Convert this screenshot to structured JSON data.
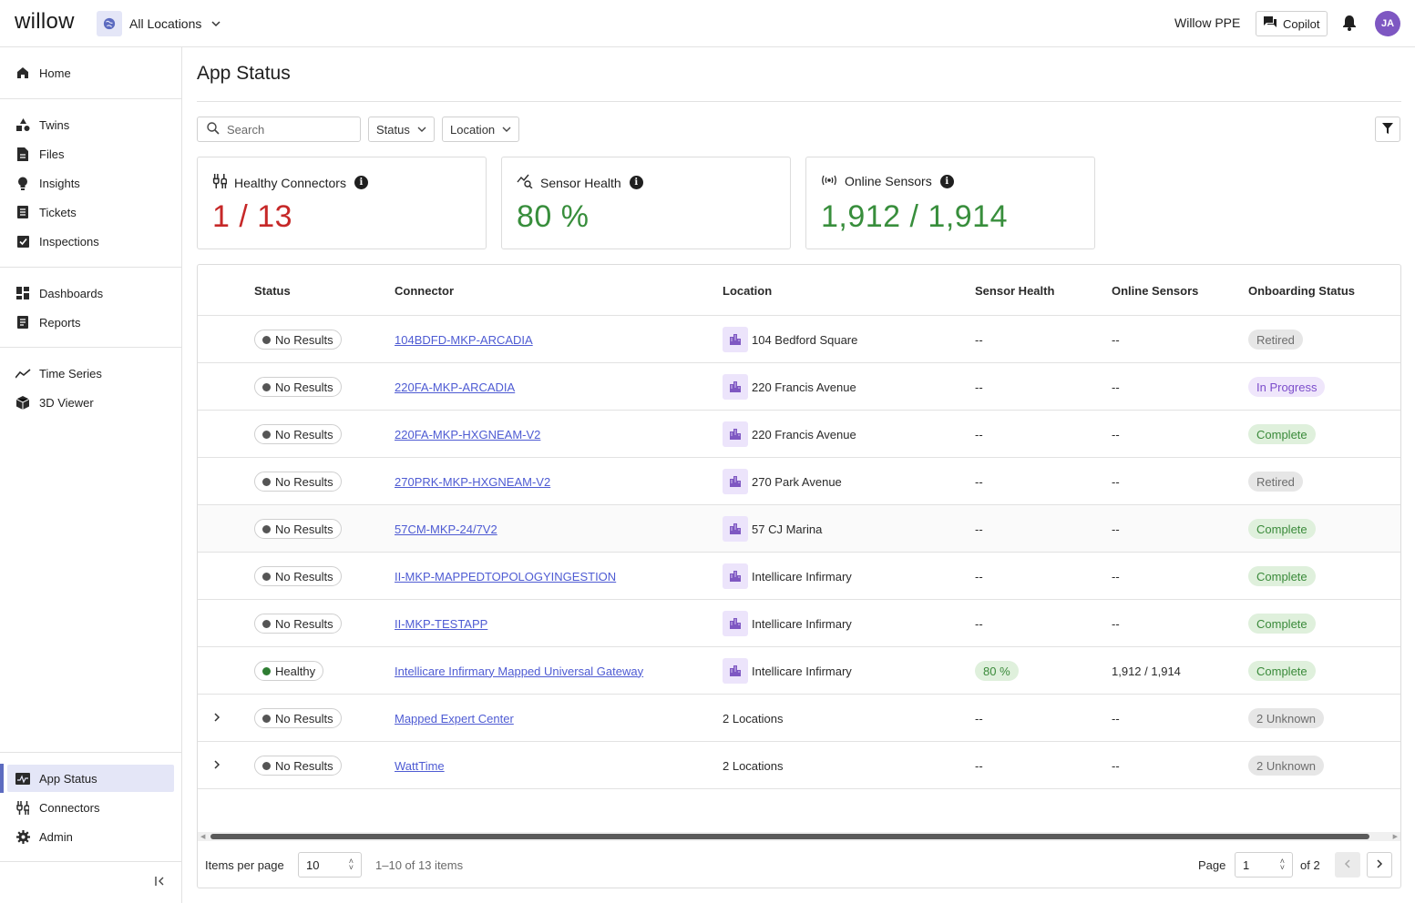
{
  "topbar": {
    "logo": "willow",
    "location_picker": "All Locations",
    "org": "Willow PPE",
    "copilot": "Copilot",
    "avatar_initials": "JA",
    "accent": "#7e57c2"
  },
  "sidebar": {
    "group1": [
      {
        "label": "Home",
        "icon": "home-icon"
      }
    ],
    "group2": [
      {
        "label": "Twins",
        "icon": "twins-icon"
      },
      {
        "label": "Files",
        "icon": "file-icon"
      },
      {
        "label": "Insights",
        "icon": "lightbulb-icon"
      },
      {
        "label": "Tickets",
        "icon": "ticket-icon"
      },
      {
        "label": "Inspections",
        "icon": "checkbox-icon"
      }
    ],
    "group3": [
      {
        "label": "Dashboards",
        "icon": "dashboard-icon"
      },
      {
        "label": "Reports",
        "icon": "report-icon"
      }
    ],
    "group4": [
      {
        "label": "Time Series",
        "icon": "timeseries-icon"
      },
      {
        "label": "3D Viewer",
        "icon": "cube-icon"
      }
    ],
    "bottom": [
      {
        "label": "App Status",
        "icon": "app-status-icon",
        "active": true
      },
      {
        "label": "Connectors",
        "icon": "connector-icon"
      },
      {
        "label": "Admin",
        "icon": "gear-icon"
      }
    ]
  },
  "main": {
    "title": "App Status",
    "search_placeholder": "Search",
    "filters": {
      "status": "Status",
      "location": "Location"
    },
    "cards": {
      "healthy": {
        "title": "Healthy Connectors",
        "value": "1 / 13",
        "color": "#c62828"
      },
      "sensor": {
        "title": "Sensor Health",
        "value": "80 %",
        "color": "#388e3c"
      },
      "online": {
        "title": "Online Sensors",
        "value": "1,912 / 1,914",
        "color": "#388e3c"
      }
    },
    "table": {
      "headers": {
        "status": "Status",
        "connector": "Connector",
        "location": "Location",
        "sensor_health": "Sensor Health",
        "online_sensors": "Online Sensors",
        "onboarding": "Onboarding Status"
      },
      "rows": [
        {
          "status": "No Results",
          "connector": "104BDFD-MKP-ARCADIA",
          "location": "104 Bedford Square",
          "sensor_health": "--",
          "online": "--",
          "onboarding": "Retired"
        },
        {
          "status": "No Results",
          "connector": "220FA-MKP-ARCADIA",
          "location": "220 Francis Avenue",
          "sensor_health": "--",
          "online": "--",
          "onboarding": "In Progress"
        },
        {
          "status": "No Results",
          "connector": "220FA-MKP-HXGNEAM-V2",
          "location": "220 Francis Avenue",
          "sensor_health": "--",
          "online": "--",
          "onboarding": "Complete"
        },
        {
          "status": "No Results",
          "connector": "270PRK-MKP-HXGNEAM-V2",
          "location": "270 Park Avenue",
          "sensor_health": "--",
          "online": "--",
          "onboarding": "Retired"
        },
        {
          "status": "No Results",
          "connector": "57CM-MKP-24/7V2",
          "location": "57 CJ Marina",
          "sensor_health": "--",
          "online": "--",
          "onboarding": "Complete"
        },
        {
          "status": "No Results",
          "connector": "II-MKP-MAPPEDTOPOLOGYINGESTION",
          "location": "Intellicare Infirmary",
          "sensor_health": "--",
          "online": "--",
          "onboarding": "Complete"
        },
        {
          "status": "No Results",
          "connector": "II-MKP-TESTAPP",
          "location": "Intellicare Infirmary",
          "sensor_health": "--",
          "online": "--",
          "onboarding": "Complete"
        },
        {
          "status": "Healthy",
          "connector": "Intellicare Infirmary Mapped Universal Gateway",
          "location": "Intellicare Infirmary",
          "sensor_health": "80 %",
          "online": "1,912 / 1,914",
          "onboarding": "Complete"
        },
        {
          "status": "No Results",
          "connector": "Mapped Expert Center",
          "location": "2 Locations",
          "sensor_health": "--",
          "online": "--",
          "onboarding": "2 Unknown"
        },
        {
          "status": "No Results",
          "connector": "WattTime",
          "location": "2 Locations",
          "sensor_health": "--",
          "online": "--",
          "onboarding": "2 Unknown"
        }
      ]
    },
    "pagination": {
      "items_per_page_label": "Items per page",
      "items_per_page": "10",
      "range": "1–10 of 13 items",
      "page_label": "Page",
      "page": "1",
      "of": "of 2"
    }
  }
}
